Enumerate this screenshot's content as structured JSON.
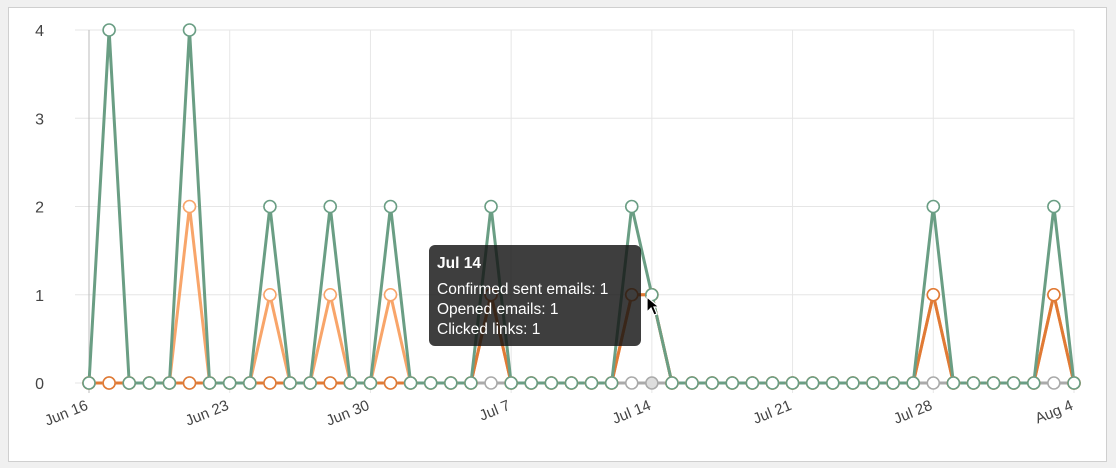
{
  "chart_data": {
    "type": "line",
    "x_start": "Jun 16",
    "x": [
      "Jun 16",
      "Jun 17",
      "Jun 18",
      "Jun 19",
      "Jun 20",
      "Jun 21",
      "Jun 22",
      "Jun 23",
      "Jun 24",
      "Jun 25",
      "Jun 26",
      "Jun 27",
      "Jun 28",
      "Jun 29",
      "Jun 30",
      "Jul 1",
      "Jul 2",
      "Jul 3",
      "Jul 4",
      "Jul 5",
      "Jul 6",
      "Jul 7",
      "Jul 8",
      "Jul 9",
      "Jul 10",
      "Jul 11",
      "Jul 12",
      "Jul 13",
      "Jul 14",
      "Jul 15",
      "Jul 16",
      "Jul 17",
      "Jul 18",
      "Jul 19",
      "Jul 20",
      "Jul 21",
      "Jul 22",
      "Jul 23",
      "Jul 24",
      "Jul 25",
      "Jul 26",
      "Jul 27",
      "Jul 28",
      "Jul 29",
      "Jul 30",
      "Jul 31",
      "Aug 1",
      "Aug 2",
      "Aug 3",
      "Aug 4"
    ],
    "x_ticks": [
      "Jun 16",
      "Jun 23",
      "Jun 30",
      "Jul 7",
      "Jul 14",
      "Jul 21",
      "Jul 28",
      "Aug 4"
    ],
    "y_ticks": [
      0,
      1,
      2,
      3,
      4
    ],
    "ylim": [
      0,
      4
    ],
    "grid": true,
    "series": [
      {
        "name": "",
        "color": "#aaaaaa",
        "values": [
          0,
          0,
          0,
          0,
          0,
          0,
          0,
          0,
          0,
          0,
          0,
          0,
          0,
          0,
          0,
          0,
          0,
          0,
          0,
          0,
          0,
          0,
          0,
          0,
          0,
          0,
          0,
          0,
          0,
          0,
          0,
          0,
          0,
          0,
          0,
          0,
          0,
          0,
          0,
          0,
          0,
          0,
          0,
          0,
          0,
          0,
          0,
          0,
          0,
          0
        ]
      },
      {
        "name": "Opened emails",
        "color": "#f8a56a",
        "values": [
          0,
          0,
          0,
          0,
          0,
          2,
          0,
          0,
          0,
          1,
          0,
          0,
          1,
          0,
          0,
          1,
          0,
          0,
          0,
          0,
          1,
          0,
          0,
          0,
          0,
          0,
          0,
          1,
          1,
          0,
          0,
          0,
          0,
          0,
          0,
          0,
          0,
          0,
          0,
          0,
          0,
          0,
          1,
          0,
          0,
          0,
          0,
          0,
          1,
          0
        ]
      },
      {
        "name": "Clicked links",
        "color": "#e07a35",
        "values": [
          0,
          0,
          0,
          0,
          0,
          0,
          0,
          0,
          0,
          0,
          0,
          0,
          0,
          0,
          0,
          0,
          0,
          0,
          0,
          0,
          1,
          0,
          0,
          0,
          0,
          0,
          0,
          1,
          1,
          0,
          0,
          0,
          0,
          0,
          0,
          0,
          0,
          0,
          0,
          0,
          0,
          0,
          1,
          0,
          0,
          0,
          0,
          0,
          1,
          0
        ]
      },
      {
        "name": "Confirmed sent emails",
        "color": "#6a9e84",
        "values": [
          0,
          4,
          0,
          0,
          0,
          4,
          0,
          0,
          0,
          2,
          0,
          0,
          2,
          0,
          0,
          2,
          0,
          0,
          0,
          0,
          2,
          0,
          0,
          0,
          0,
          0,
          0,
          2,
          1,
          0,
          0,
          0,
          0,
          0,
          0,
          0,
          0,
          0,
          0,
          0,
          0,
          0,
          2,
          0,
          0,
          0,
          0,
          0,
          2,
          0
        ]
      }
    ],
    "hover_index": 28
  },
  "tooltip": {
    "title": "Jul 14",
    "lines": [
      "Confirmed sent emails: 1",
      "Opened emails: 1",
      "Clicked links: 1"
    ]
  }
}
